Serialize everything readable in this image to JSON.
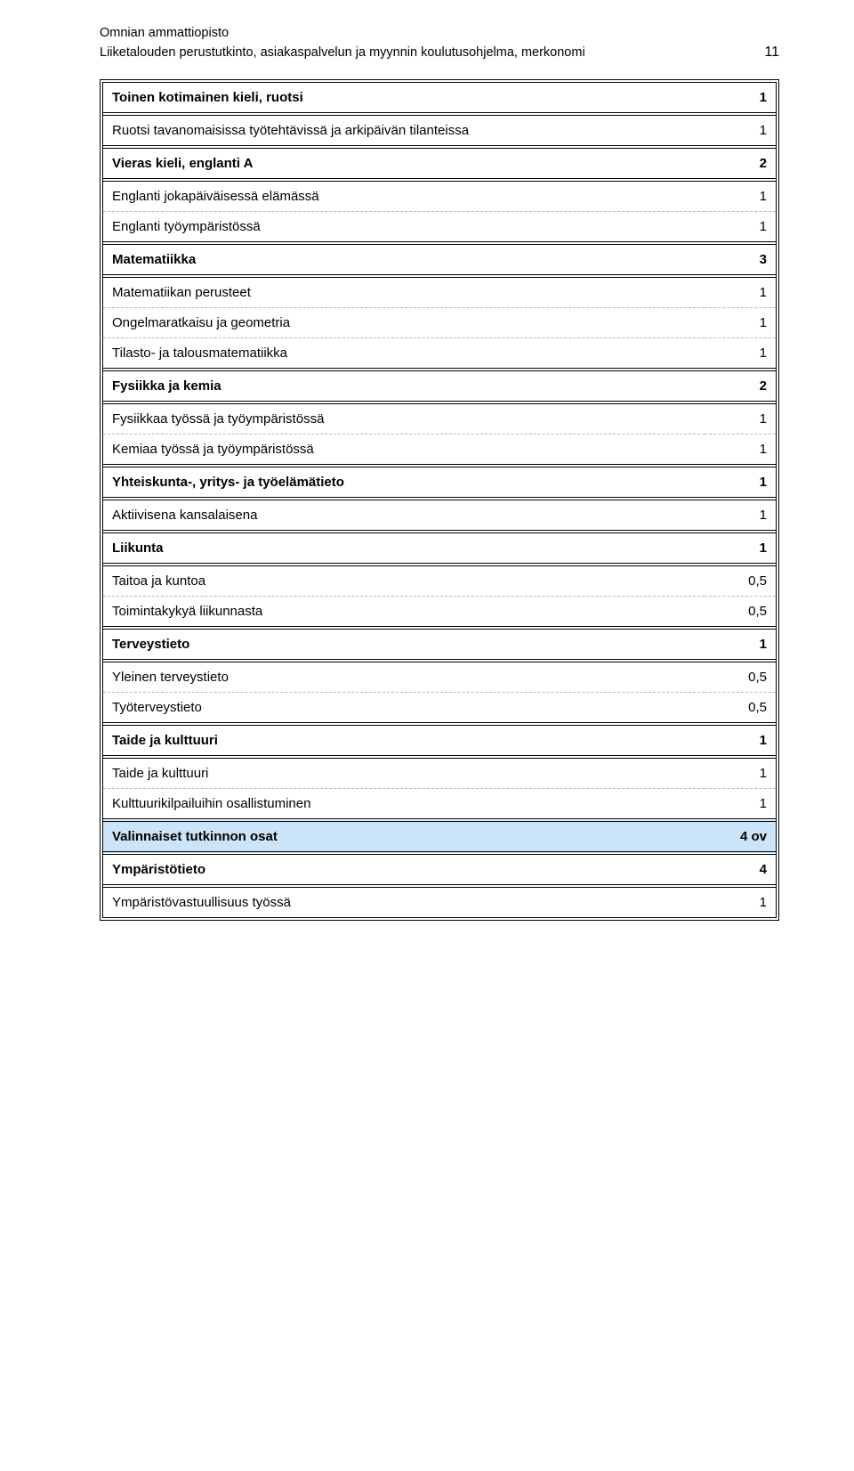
{
  "header": {
    "line1": "Omnian ammattiopisto",
    "line2": "Liiketalouden perustutkinto, asiakaspalvelun ja myynnin koulutusohjelma, merkonomi",
    "page_number": "11"
  },
  "rows": [
    {
      "label": "Toinen kotimainen kieli, ruotsi",
      "value": "1",
      "bold": true,
      "section": "first"
    },
    {
      "label": "Ruotsi tavanomaisissa työtehtävissä ja arkipäivän tilanteissa",
      "value": "1",
      "bold": false
    },
    {
      "label": "Vieras kieli, englanti A",
      "value": "2",
      "bold": true,
      "section": true
    },
    {
      "label": "Englanti jokapäiväisessä elämässä",
      "value": "1",
      "bold": false
    },
    {
      "label": "Englanti työympäristössä",
      "value": "1",
      "bold": false
    },
    {
      "label": "Matematiikka",
      "value": "3",
      "bold": true,
      "section": true
    },
    {
      "label": "Matematiikan perusteet",
      "value": "1",
      "bold": false
    },
    {
      "label": "Ongelmaratkaisu ja geometria",
      "value": "1",
      "bold": false
    },
    {
      "label": "Tilasto- ja talousmatematiikka",
      "value": "1",
      "bold": false
    },
    {
      "label": "Fysiikka ja kemia",
      "value": "2",
      "bold": true,
      "section": true
    },
    {
      "label": "Fysiikkaa työssä ja työympäristössä",
      "value": "1",
      "bold": false
    },
    {
      "label": "Kemiaa työssä ja työympäristössä",
      "value": "1",
      "bold": false
    },
    {
      "label": "Yhteiskunta-, yritys- ja työelämätieto",
      "value": "1",
      "bold": true,
      "section": true
    },
    {
      "label": "Aktiivisena kansalaisena",
      "value": "1",
      "bold": false
    },
    {
      "label": "Liikunta",
      "value": "1",
      "bold": true,
      "section": true
    },
    {
      "label": "Taitoa ja kuntoa",
      "value": "0,5",
      "bold": false
    },
    {
      "label": "Toimintakykyä liikunnasta",
      "value": "0,5",
      "bold": false
    },
    {
      "label": "Terveystieto",
      "value": "1",
      "bold": true,
      "section": true
    },
    {
      "label": "Yleinen terveystieto",
      "value": "0,5",
      "bold": false
    },
    {
      "label": "Työterveystieto",
      "value": "0,5",
      "bold": false
    },
    {
      "label": "Taide ja kulttuuri",
      "value": "1",
      "bold": true,
      "section": true
    },
    {
      "label": "Taide ja kulttuuri",
      "value": "1",
      "bold": false
    },
    {
      "label": "Kulttuurikilpailuihin osallistuminen",
      "value": "1",
      "bold": false
    },
    {
      "label": "Valinnaiset tutkinnon osat",
      "value": "4 ov",
      "bold": true,
      "section": true,
      "highlight": true
    },
    {
      "label": "Ympäristötieto",
      "value": "4",
      "bold": true,
      "section": true
    },
    {
      "label": "Ympäristövastuullisuus työssä",
      "value": "1",
      "bold": false,
      "last": true
    }
  ],
  "colors": {
    "highlight_bg": "#cce4f7",
    "dash_border": "#b9b9b9",
    "text": "#000000",
    "bg": "#ffffff"
  }
}
